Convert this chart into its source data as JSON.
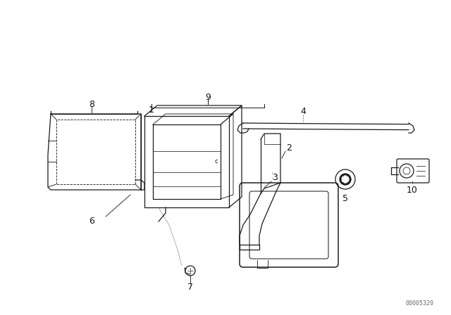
{
  "background_color": "#ffffff",
  "line_color": "#1a1a1a",
  "text_color": "#111111",
  "watermark": "00005320",
  "fig_w": 6.4,
  "fig_h": 4.48,
  "dpi": 100
}
